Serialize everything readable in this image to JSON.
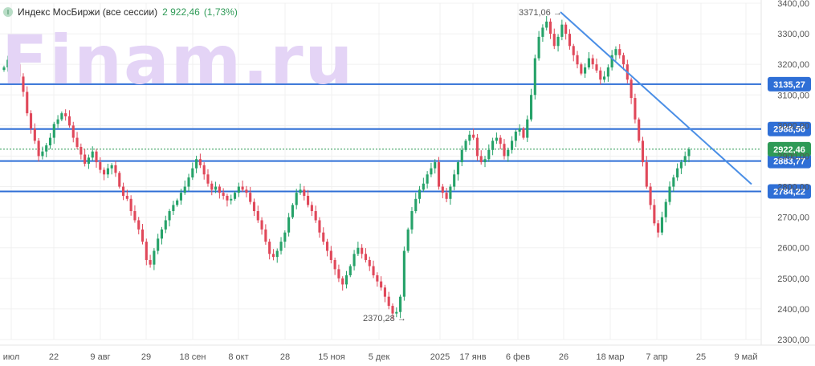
{
  "legend": {
    "badge": "I",
    "name": "Индекс МосБиржи (все сессии)",
    "value": "2 922,46",
    "change": "(1,73%)"
  },
  "watermark": "Finam.ru",
  "colors": {
    "up": "#26a269",
    "down": "#e0485a",
    "level": "#2f6fd6",
    "trend": "#4a8ee6",
    "last": "#2e9a56"
  },
  "chart_data": {
    "type": "candlestick",
    "ylim": [
      2300,
      3400
    ],
    "y_ticks": [
      "3400,00",
      "3300,00",
      "3200,00",
      "3100,00",
      "3000,00",
      "2900,00",
      "2800,00",
      "2700,00",
      "2600,00",
      "2500,00",
      "2400,00",
      "2300,00"
    ],
    "x_ticks": [
      "июл",
      "22",
      "9 авг",
      "29",
      "18 сен",
      "8 окт",
      "28",
      "15 ноя",
      "5 дек",
      "2025",
      "17 янв",
      "6 фев",
      "26",
      "18 мар",
      "7 апр",
      "25",
      "9 май"
    ],
    "levels": [
      3135.27,
      2988.56,
      2883.77,
      2784.22
    ],
    "level_labels": [
      "3135,27",
      "2988,56",
      "2883,77",
      "2784,22"
    ],
    "last_price": 2922.46,
    "last_label": "2922,46",
    "annotations": [
      {
        "label": "3371,06",
        "value": 3371.06
      },
      {
        "label": "2370,28",
        "value": 2370.28
      }
    ],
    "trendline": {
      "from_value": 3371.06,
      "to_value": 2808
    },
    "closes": [
      3190,
      3215,
      3230,
      3200,
      3160,
      3110,
      3040,
      2990,
      2950,
      2900,
      2915,
      2935,
      2960,
      3005,
      3020,
      3040,
      3030,
      3000,
      2960,
      2930,
      2905,
      2875,
      2895,
      2915,
      2880,
      2855,
      2840,
      2860,
      2870,
      2845,
      2800,
      2770,
      2760,
      2720,
      2690,
      2660,
      2620,
      2560,
      2545,
      2590,
      2630,
      2660,
      2690,
      2720,
      2740,
      2755,
      2780,
      2800,
      2830,
      2860,
      2890,
      2870,
      2840,
      2810,
      2790,
      2800,
      2780,
      2770,
      2755,
      2760,
      2780,
      2800,
      2790,
      2780,
      2750,
      2720,
      2690,
      2660,
      2620,
      2580,
      2570,
      2590,
      2620,
      2650,
      2700,
      2740,
      2780,
      2790,
      2770,
      2740,
      2720,
      2690,
      2650,
      2620,
      2590,
      2560,
      2530,
      2500,
      2480,
      2510,
      2540,
      2580,
      2600,
      2580,
      2560,
      2540,
      2510,
      2490,
      2470,
      2440,
      2410,
      2385,
      2390,
      2440,
      2590,
      2660,
      2720,
      2760,
      2790,
      2810,
      2840,
      2860,
      2880,
      2800,
      2780,
      2760,
      2800,
      2840,
      2880,
      2920,
      2950,
      2970,
      2960,
      2900,
      2880,
      2890,
      2920,
      2950,
      2960,
      2940,
      2900,
      2920,
      2950,
      2980,
      2990,
      2960,
      3020,
      3100,
      3220,
      3290,
      3320,
      3340,
      3300,
      3260,
      3290,
      3330,
      3300,
      3260,
      3230,
      3200,
      3170,
      3190,
      3220,
      3200,
      3180,
      3150,
      3160,
      3190,
      3230,
      3250,
      3230,
      3200,
      3150,
      3090,
      3020,
      2950,
      2880,
      2800,
      2740,
      2680,
      2650,
      2700,
      2750,
      2800,
      2830,
      2860,
      2880,
      2900,
      2922
    ]
  }
}
